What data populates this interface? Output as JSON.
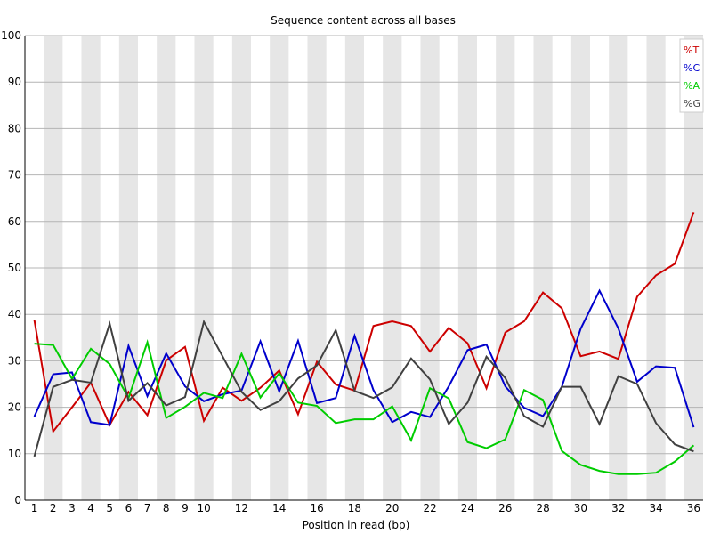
{
  "chart_data": {
    "type": "line",
    "title": "Sequence content across all bases",
    "xlabel": "Position in read (bp)",
    "ylabel": "",
    "ylim": [
      0,
      100
    ],
    "yticks": [
      0,
      10,
      20,
      30,
      40,
      50,
      60,
      70,
      80,
      90,
      100
    ],
    "grid": "alternating vertical bands",
    "legend_position": "top-right",
    "x": [
      1,
      2,
      3,
      4,
      5,
      6,
      7,
      8,
      9,
      10,
      11,
      12,
      13,
      14,
      15,
      16,
      17,
      18,
      19,
      20,
      21,
      22,
      23,
      24,
      25,
      26,
      27,
      28,
      29,
      30,
      31,
      32,
      33,
      34,
      35,
      36
    ],
    "xtick_labels": [
      "1",
      "2",
      "3",
      "4",
      "5",
      "6",
      "7",
      "8",
      "9",
      "10",
      "",
      "12",
      "",
      "14",
      "",
      "16",
      "",
      "18",
      "",
      "20",
      "",
      "22",
      "",
      "24",
      "",
      "26",
      "",
      "28",
      "",
      "30",
      "",
      "32",
      "",
      "34",
      "",
      "36"
    ],
    "series": [
      {
        "name": "%T",
        "color": "#cc0000",
        "values": [
          38.8,
          14.8,
          20.0,
          25.3,
          16.2,
          23.3,
          18.3,
          30.1,
          33.0,
          17.1,
          24.2,
          21.4,
          24.2,
          27.9,
          18.5,
          29.8,
          24.9,
          23.6,
          37.5,
          38.5,
          37.5,
          32.0,
          37.1,
          33.8,
          24.1,
          36.1,
          38.5,
          44.7,
          41.3,
          31.0,
          32.0,
          30.4,
          43.8,
          48.4,
          50.9,
          62.0
        ]
      },
      {
        "name": "%C",
        "color": "#0000cc",
        "values": [
          18.0,
          27.1,
          27.5,
          16.8,
          16.2,
          33.2,
          22.4,
          31.6,
          24.5,
          21.3,
          22.8,
          23.6,
          34.2,
          23.4,
          34.3,
          20.9,
          22.0,
          35.4,
          23.7,
          16.8,
          19.0,
          17.9,
          24.5,
          32.3,
          33.5,
          24.5,
          19.9,
          18.1,
          24.4,
          36.9,
          45.1,
          37.0,
          25.5,
          28.8,
          28.5,
          15.7
        ]
      },
      {
        "name": "%A",
        "color": "#00cc00",
        "values": [
          33.7,
          33.4,
          26.1,
          32.6,
          29.3,
          22.0,
          34.0,
          17.7,
          20.1,
          23.1,
          22.0,
          31.5,
          22.1,
          27.3,
          21.0,
          20.3,
          16.6,
          17.4,
          17.4,
          20.2,
          12.9,
          24.1,
          21.9,
          12.5,
          11.2,
          13.1,
          23.7,
          21.6,
          10.6,
          7.6,
          6.3,
          5.6,
          5.6,
          5.9,
          8.3,
          11.8
        ]
      },
      {
        "name": "%G",
        "color": "#404040",
        "values": [
          9.4,
          24.4,
          25.9,
          25.3,
          38.0,
          21.4,
          25.2,
          20.4,
          22.2,
          38.4,
          30.9,
          23.3,
          19.4,
          21.3,
          26.2,
          29.0,
          36.6,
          23.5,
          22.0,
          24.3,
          30.5,
          26.0,
          16.4,
          21.0,
          30.9,
          26.3,
          18.1,
          15.8,
          24.4,
          24.4,
          16.4,
          26.7,
          25.0,
          16.6,
          12.0,
          10.5
        ]
      }
    ]
  }
}
